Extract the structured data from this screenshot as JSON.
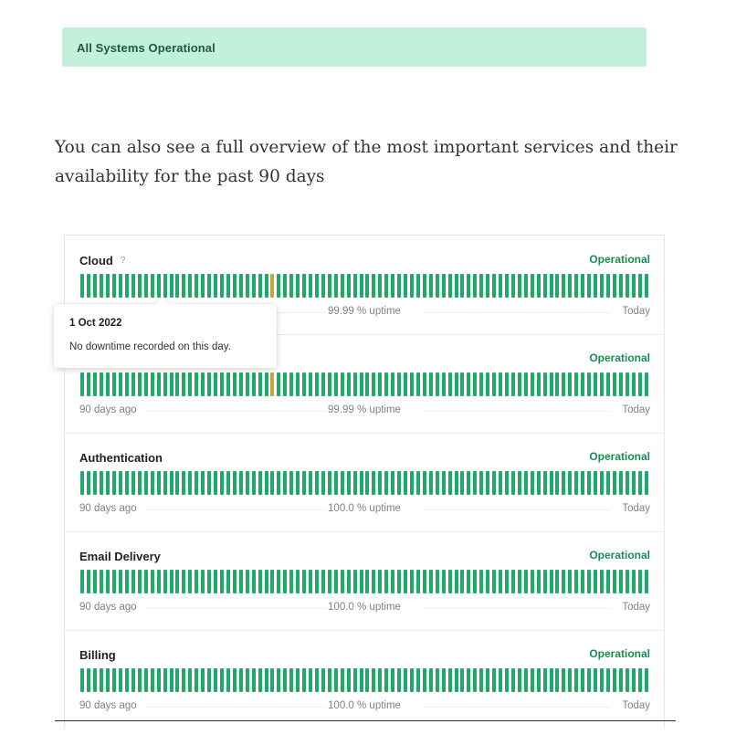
{
  "banner": {
    "text": "All Systems Operational",
    "color": "#c3f0da"
  },
  "intro_text": "You can also see a full overview of the most important services and their availability for the past 90 days",
  "colors": {
    "operational": "#1ea968",
    "degraded": "#b9ab3f"
  },
  "legend": {
    "start": "90 days ago",
    "end": "Today"
  },
  "components": [
    {
      "name": "Cloud",
      "help_icon": "?",
      "status": "Operational",
      "uptime": "99.99 % uptime",
      "degraded_day_index": 30,
      "show_start": false
    },
    {
      "name": "",
      "status": "Operational",
      "uptime": "99.99 % uptime",
      "degraded_day_index": 30,
      "show_start": true
    },
    {
      "name": "Authentication",
      "status": "Operational",
      "uptime": "100.0 % uptime",
      "degraded_day_index": null,
      "show_start": true
    },
    {
      "name": "Email Delivery",
      "status": "Operational",
      "uptime": "100.0 % uptime",
      "degraded_day_index": null,
      "show_start": true
    },
    {
      "name": "Billing",
      "status": "Operational",
      "uptime": "100.0 % uptime",
      "degraded_day_index": null,
      "show_start": true
    }
  ],
  "days_shown": 90,
  "tooltip": {
    "date": "1 Oct 2022",
    "message": "No downtime recorded on this day."
  }
}
